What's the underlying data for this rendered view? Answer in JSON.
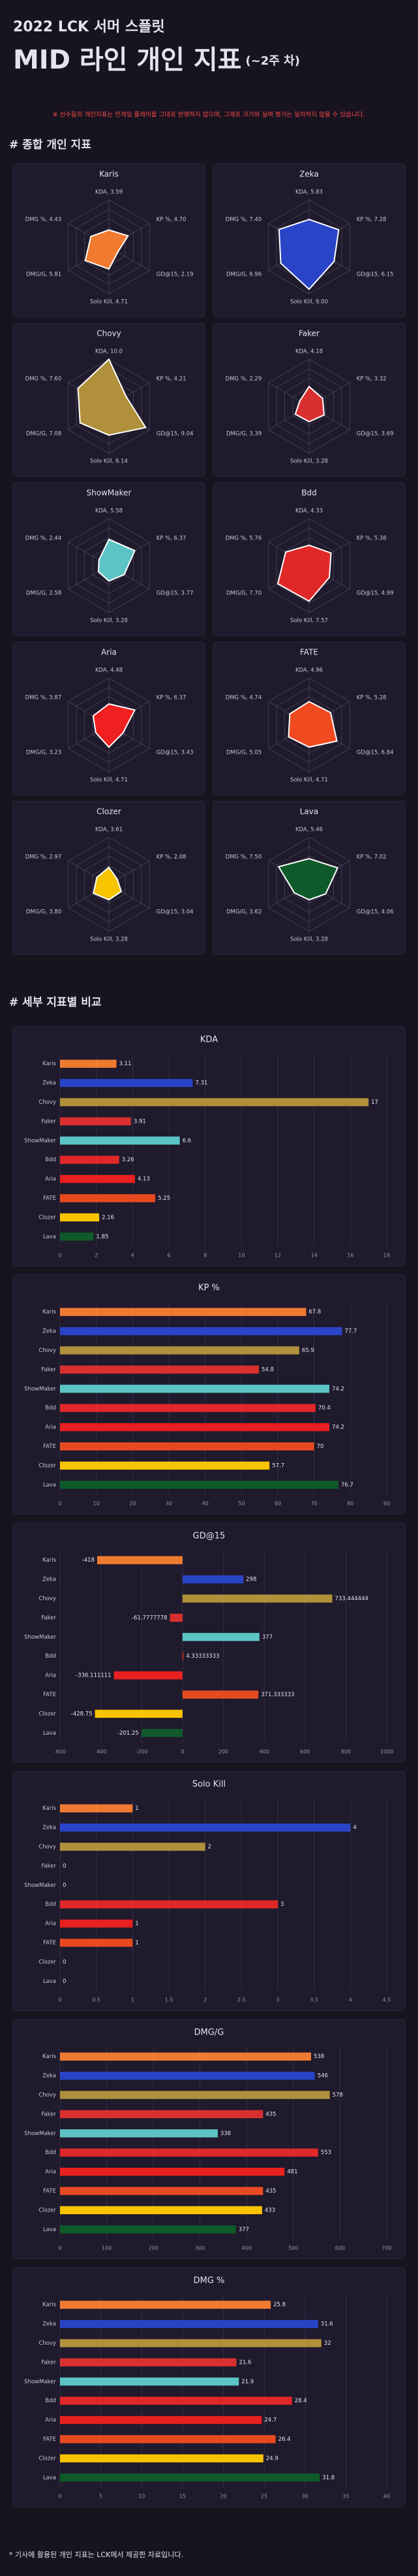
{
  "header": {
    "title": "2022 LCK 서머 스플릿",
    "subtitle": "MID 라인 개인 지표",
    "subtitle_suffix": "(~2주 차)",
    "note": "※ 선수들의 개인지표는 인게임 플레이를 그대로 반영하지 않으며, 그래프 크기와 실력 평가는 일치하지 않을 수 있습니다."
  },
  "sections": [
    "# 종합 개인 지표",
    "# 세부 지표별 비교"
  ],
  "footnote": "* 기사에 활용된 개인 지표는 LCK에서 제공한 자료입니다.",
  "chart_data": [
    {
      "type": "radar",
      "title": "Karis",
      "color": "#f07a30",
      "rlim": [
        0,
        10
      ],
      "rticks": [
        2,
        4,
        6,
        8,
        10
      ],
      "values": [
        3.59,
        4.7,
        2.19,
        4.71,
        5.81,
        4.43
      ],
      "value_labels": [
        "KDA, 3.59",
        "KP %, 4.70",
        "GD@15, 2.19",
        "Solo Kill, 4.71",
        "DMG/G, 5.81",
        "DMG %, 4.43"
      ]
    },
    {
      "type": "radar",
      "title": "Zeka",
      "color": "#2a44c8",
      "rlim": [
        0,
        10
      ],
      "rticks": [
        2,
        4,
        6,
        8,
        10
      ],
      "values": [
        5.83,
        7.28,
        6.15,
        9.0,
        6.96,
        7.4
      ],
      "value_labels": [
        "KDA, 5.83",
        "KP %, 7.28",
        "GD@15, 6.15",
        "Solo Kill, 9.00",
        "DMG/G, 6.96",
        "DMG %, 7.40"
      ]
    },
    {
      "type": "radar",
      "title": "Chovy",
      "color": "#b0903a",
      "rlim": [
        0,
        10
      ],
      "rticks": [
        2,
        4,
        6,
        8,
        10
      ],
      "values": [
        10.0,
        4.21,
        9.04,
        6.14,
        7.08,
        7.6
      ],
      "value_labels": [
        "KDA, 10.0",
        "KP %, 4.21",
        "GD@15, 9.04",
        "Solo Kill, 6.14",
        "DMG/G, 7.08",
        "DMG %, 7.60"
      ]
    },
    {
      "type": "radar",
      "title": "Faker",
      "color": "#d83030",
      "rlim": [
        0,
        10
      ],
      "rticks": [
        2,
        4,
        6,
        8,
        10
      ],
      "values": [
        4.18,
        3.32,
        3.69,
        3.28,
        3.39,
        2.29
      ],
      "value_labels": [
        "KDA, 4.18",
        "KP %, 3.32",
        "GD@15, 3.69",
        "Solo Kill, 3.28",
        "DMG/G, 3.39",
        "DMG %, 2.29"
      ]
    },
    {
      "type": "radar",
      "title": "ShowMaker",
      "color": "#5cc4c4",
      "rlim": [
        0,
        10
      ],
      "rticks": [
        2,
        4,
        6,
        8,
        10
      ],
      "values": [
        5.58,
        6.37,
        3.77,
        3.28,
        2.58,
        2.44
      ],
      "value_labels": [
        "KDA, 5.58",
        "KP %, 6.37",
        "GD@15, 3.77",
        "Solo Kill, 3.28",
        "DMG/G, 2.58",
        "DMG %, 2.44"
      ]
    },
    {
      "type": "radar",
      "title": "Bdd",
      "color": "#e02828",
      "rlim": [
        0,
        10
      ],
      "rticks": [
        2,
        4,
        6,
        8,
        10
      ],
      "values": [
        4.33,
        5.38,
        4.99,
        7.57,
        7.7,
        5.76
      ],
      "value_labels": [
        "KDA, 4.33",
        "KP %, 5.38",
        "GD@15, 4.99",
        "Solo Kill, 7.57",
        "DMG/G, 7.70",
        "DMG %, 5.76"
      ]
    },
    {
      "type": "radar",
      "title": "Aria",
      "color": "#f02020",
      "rlim": [
        0,
        10
      ],
      "rticks": [
        2,
        4,
        6,
        8,
        10
      ],
      "values": [
        4.48,
        6.37,
        3.43,
        4.71,
        3.23,
        3.87
      ],
      "value_labels": [
        "KDA, 4.48",
        "KP %, 6.37",
        "GD@15, 3.43",
        "Solo Kill, 4.71",
        "DMG/G, 3.23",
        "DMG %, 3.87"
      ]
    },
    {
      "type": "radar",
      "title": "FATE",
      "color": "#f04a20",
      "rlim": [
        0,
        10
      ],
      "rticks": [
        2,
        4,
        6,
        8,
        10
      ],
      "values": [
        4.96,
        5.28,
        6.84,
        4.71,
        5.05,
        4.74
      ],
      "value_labels": [
        "KDA, 4.96",
        "KP %, 5.28",
        "GD@15, 6.84",
        "Solo Kill, 4.71",
        "DMG/G, 5.05",
        "DMG %, 4.74"
      ]
    },
    {
      "type": "radar",
      "title": "Clozer",
      "color": "#f8c400",
      "rlim": [
        0,
        10
      ],
      "rticks": [
        2,
        4,
        6,
        8,
        10
      ],
      "values": [
        3.61,
        2.08,
        3.04,
        3.28,
        3.8,
        2.97
      ],
      "value_labels": [
        "KDA, 3.61",
        "KP %, 2.08",
        "GD@15, 3.04",
        "Solo Kill, 3.28",
        "DMG/G, 3.80",
        "DMG %, 2.97"
      ]
    },
    {
      "type": "radar",
      "title": "Lava",
      "color": "#0f5a2a",
      "rlim": [
        0,
        10
      ],
      "rticks": [
        2,
        4,
        6,
        8,
        10
      ],
      "values": [
        5.46,
        7.02,
        4.06,
        3.28,
        3.62,
        7.5
      ],
      "value_labels": [
        "KDA, 5.46",
        "KP %, 7.02",
        "GD@15, 4.06",
        "Solo Kill, 3.28",
        "DMG/G, 3.62",
        "DMG %, 7.50"
      ]
    },
    {
      "type": "bar",
      "orientation": "horizontal",
      "title": "KDA",
      "grid": true,
      "categories": [
        "Karis",
        "Zeka",
        "Chovy",
        "Faker",
        "ShowMaker",
        "Bdd",
        "Aria",
        "FATE",
        "Clozer",
        "Lava"
      ],
      "colors": [
        "#f07a30",
        "#2a44c8",
        "#b0903a",
        "#d83030",
        "#5cc4c4",
        "#e02828",
        "#e82020",
        "#e84a20",
        "#f8c400",
        "#0f5a2a"
      ],
      "values": [
        3.11,
        7.31,
        17,
        3.91,
        6.6,
        3.26,
        4.13,
        5.25,
        2.16,
        1.85
      ],
      "xlim": [
        0,
        18
      ],
      "xticks": [
        0,
        2,
        4,
        6,
        8,
        10,
        12,
        14,
        16,
        18
      ]
    },
    {
      "type": "bar",
      "orientation": "horizontal",
      "title": "KP %",
      "grid": true,
      "categories": [
        "Karis",
        "Zeka",
        "Chovy",
        "Faker",
        "ShowMaker",
        "Bdd",
        "Aria",
        "FATE",
        "Clozer",
        "Lava"
      ],
      "colors": [
        "#f07a30",
        "#2a44c8",
        "#b0903a",
        "#d83030",
        "#5cc4c4",
        "#e02828",
        "#e82020",
        "#e84a20",
        "#f8c400",
        "#0f5a2a"
      ],
      "values": [
        67.8,
        77.7,
        65.9,
        54.8,
        74.2,
        70.4,
        74.2,
        70,
        57.7,
        76.7
      ],
      "xlim": [
        0,
        90
      ],
      "xticks": [
        0,
        10,
        20,
        30,
        40,
        50,
        60,
        70,
        80,
        90
      ]
    },
    {
      "type": "bar",
      "orientation": "horizontal",
      "title": "GD@15",
      "grid": true,
      "categories": [
        "Karis",
        "Zeka",
        "Chovy",
        "Faker",
        "ShowMaker",
        "Bdd",
        "Aria",
        "FATE",
        "Clozer",
        "Lava"
      ],
      "colors": [
        "#f07a30",
        "#2a44c8",
        "#b0903a",
        "#d83030",
        "#5cc4c4",
        "#e02828",
        "#e82020",
        "#e84a20",
        "#f8c400",
        "#0f5a2a"
      ],
      "values": [
        -418,
        298,
        733.444444,
        -61.7777778,
        377,
        4.33333333,
        -336.111111,
        371.333333,
        -428.75,
        -201.25
      ],
      "xlim": [
        -600,
        1000
      ],
      "xticks": [
        -600,
        -400,
        -200,
        0,
        200,
        400,
        600,
        800,
        1000
      ]
    },
    {
      "type": "bar",
      "orientation": "horizontal",
      "title": "Solo Kill",
      "grid": true,
      "categories": [
        "Karis",
        "Zeka",
        "Chovy",
        "Faker",
        "ShowMaker",
        "Bdd",
        "Aria",
        "FATE",
        "Clozer",
        "Lava"
      ],
      "colors": [
        "#f07a30",
        "#2a44c8",
        "#b0903a",
        "#d83030",
        "#5cc4c4",
        "#e02828",
        "#e82020",
        "#e84a20",
        "#f8c400",
        "#0f5a2a"
      ],
      "values": [
        1,
        4,
        2,
        0,
        0,
        3,
        1,
        1,
        0,
        0
      ],
      "xlim": [
        0,
        4.5
      ],
      "xticks": [
        0,
        0.5,
        1,
        1.5,
        2,
        2.5,
        3,
        3.5,
        4,
        4.5
      ]
    },
    {
      "type": "bar",
      "orientation": "horizontal",
      "title": "DMG/G",
      "grid": true,
      "categories": [
        "Karis",
        "Zeka",
        "Chovy",
        "Faker",
        "ShowMaker",
        "Bdd",
        "Aria",
        "FATE",
        "Clozer",
        "Lava"
      ],
      "colors": [
        "#f07a30",
        "#2a44c8",
        "#b0903a",
        "#d83030",
        "#5cc4c4",
        "#e02828",
        "#e82020",
        "#e84a20",
        "#f8c400",
        "#0f5a2a"
      ],
      "values": [
        538,
        546,
        578,
        435,
        338,
        553,
        481,
        435,
        433,
        377
      ],
      "xlim": [
        0,
        700
      ],
      "xticks": [
        0,
        100,
        200,
        300,
        400,
        500,
        600,
        700
      ]
    },
    {
      "type": "bar",
      "orientation": "horizontal",
      "title": "DMG %",
      "grid": true,
      "categories": [
        "Karis",
        "Zeka",
        "Chovy",
        "Faker",
        "ShowMaker",
        "Bdd",
        "Aria",
        "FATE",
        "Clozer",
        "Lava"
      ],
      "colors": [
        "#f07a30",
        "#2a44c8",
        "#b0903a",
        "#d83030",
        "#5cc4c4",
        "#e02828",
        "#e82020",
        "#e84a20",
        "#f8c400",
        "#0f5a2a"
      ],
      "values": [
        25.8,
        31.6,
        32,
        21.6,
        21.9,
        28.4,
        24.7,
        26.4,
        24.9,
        31.8
      ],
      "xlim": [
        0,
        40
      ],
      "xticks": [
        0,
        5,
        10,
        15,
        20,
        25,
        30,
        35,
        40
      ]
    }
  ]
}
